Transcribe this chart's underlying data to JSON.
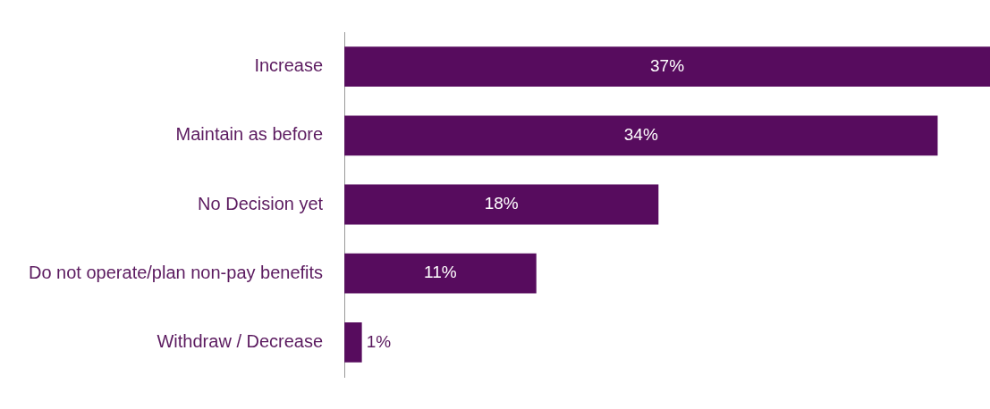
{
  "chart_data": {
    "type": "bar",
    "orientation": "horizontal",
    "categories": [
      "Increase",
      "Maintain as before",
      "No Decision yet",
      "Do not operate/plan non-pay benefits",
      "Withdraw / Decrease"
    ],
    "values": [
      37,
      34,
      18,
      11,
      1
    ],
    "value_labels": [
      "37%",
      "34%",
      "18%",
      "11%",
      "1%"
    ],
    "color": "#570c5e",
    "legend": false
  }
}
